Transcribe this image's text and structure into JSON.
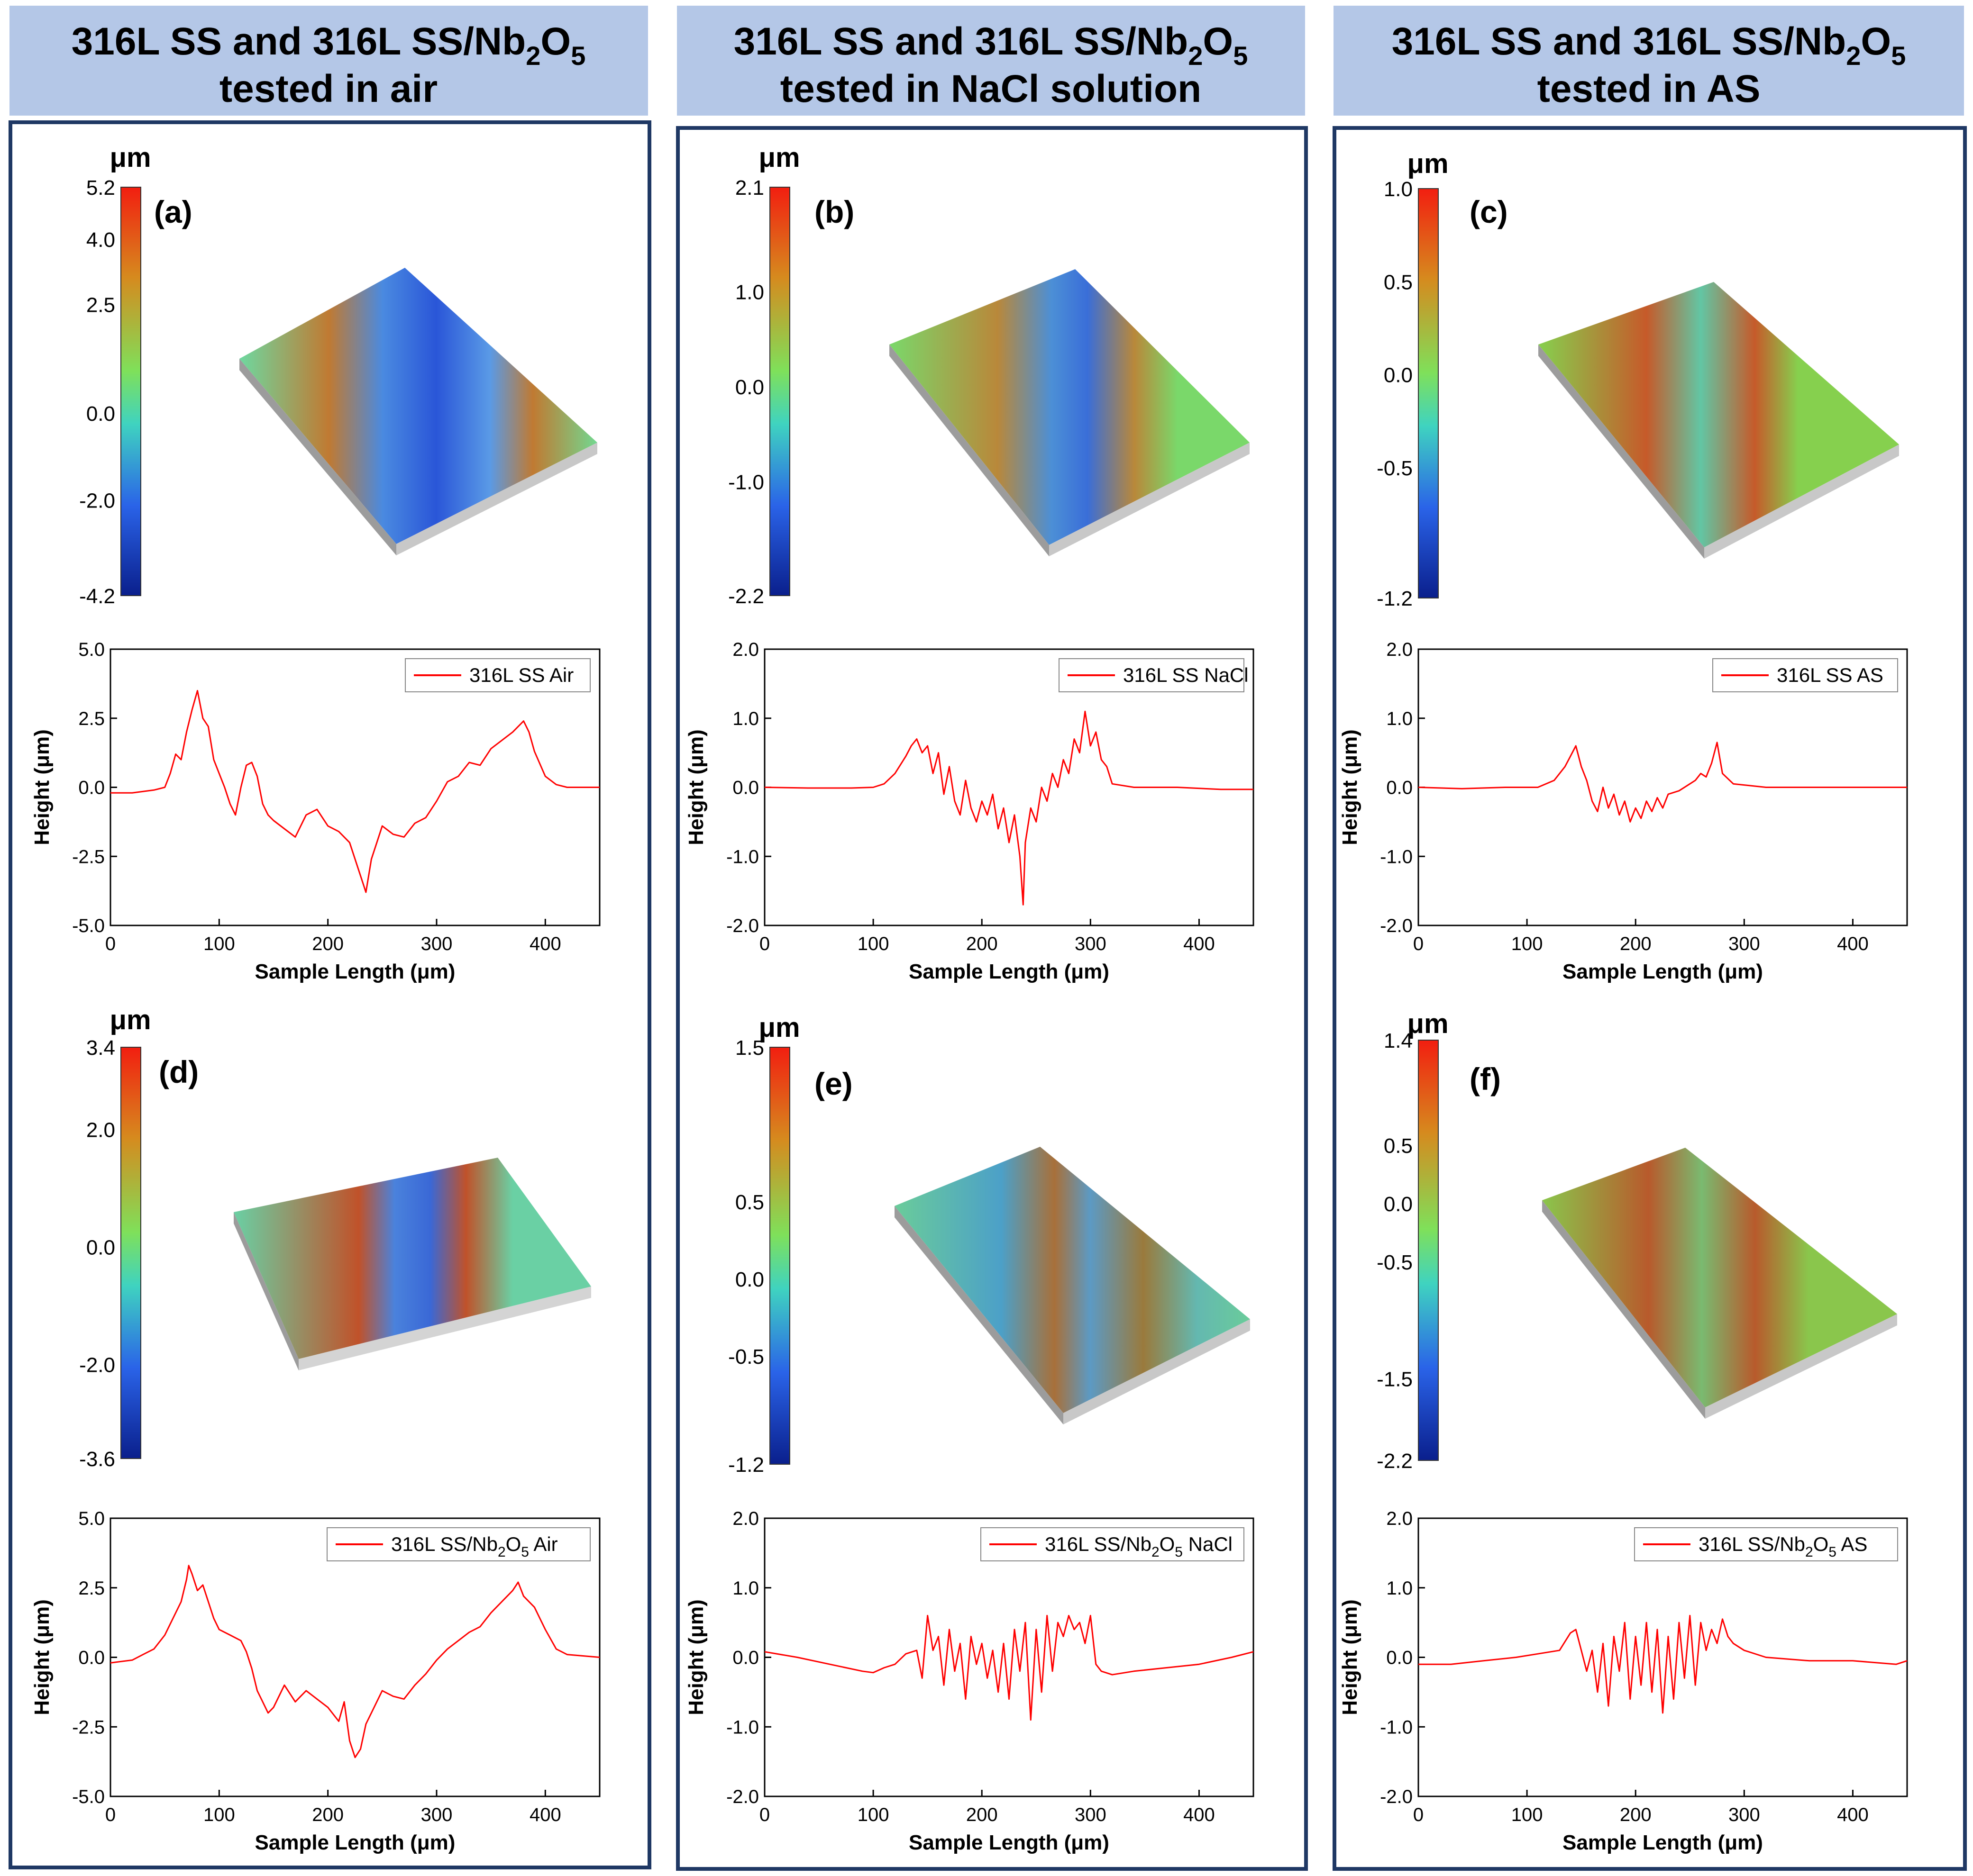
{
  "columns": [
    {
      "title_line1": "316L SS and 316L SS/Nb",
      "sub": "2",
      "title_line1_tail": "O",
      "sub2": "5",
      "title_line2": "tested in air"
    },
    {
      "title_line1": "316L SS and 316L SS/Nb",
      "sub": "2",
      "title_line1_tail": "O",
      "sub2": "5",
      "title_line2": "tested in NaCl solution"
    },
    {
      "title_line1": "316L SS and 316L SS/Nb",
      "sub": "2",
      "title_line1_tail": "O",
      "sub2": "5",
      "title_line2": "tested in AS"
    }
  ],
  "colors": {
    "header_bg": "#b4c7e7",
    "frame": "#1f3864",
    "series": "#ff0000",
    "scale_stops": [
      "#0a1f8c",
      "#2a63e8",
      "#3fd3c0",
      "#7fe05a",
      "#d68a1e",
      "#f21e10"
    ]
  },
  "colorbar_unit": "μm",
  "chart_data": [
    {
      "panel": "(a)",
      "type": "surface_colorbar",
      "ticks": [
        "5.2",
        "4.0",
        "2.5",
        "0.0",
        "-2.0",
        "-4.2"
      ],
      "tick_values": [
        5.2,
        4.0,
        2.5,
        0.0,
        -2.0,
        -4.2
      ],
      "range": [
        -4.2,
        5.2
      ]
    },
    {
      "panel": "(b)",
      "type": "surface_colorbar",
      "ticks": [
        "2.1",
        "1.0",
        "0.0",
        "-1.0",
        "-2.2"
      ],
      "tick_values": [
        2.1,
        1.0,
        0.0,
        -1.0,
        -2.2
      ],
      "range": [
        -2.2,
        2.1
      ]
    },
    {
      "panel": "(c)",
      "type": "surface_colorbar",
      "ticks": [
        "1.0",
        "0.5",
        "0.0",
        "-0.5",
        "-1.2"
      ],
      "tick_values": [
        1.0,
        0.5,
        0.0,
        -0.5,
        -1.2
      ],
      "range": [
        -1.2,
        1.0
      ]
    },
    {
      "panel": "(d)",
      "type": "surface_colorbar",
      "ticks": [
        "3.4",
        "2.0",
        "0.0",
        "-2.0",
        "-3.6"
      ],
      "tick_values": [
        3.4,
        2.0,
        0.0,
        -2.0,
        -3.6
      ],
      "range": [
        -3.6,
        3.4
      ]
    },
    {
      "panel": "(e)",
      "type": "surface_colorbar",
      "ticks": [
        "1.5",
        "0.5",
        "0.0",
        "-0.5",
        "-1.2"
      ],
      "tick_values": [
        1.5,
        0.5,
        0.0,
        -0.5,
        -1.2
      ],
      "range": [
        -1.2,
        1.5
      ]
    },
    {
      "panel": "(f)",
      "type": "surface_colorbar",
      "ticks": [
        "1.4",
        "0.5",
        "0.0",
        "-0.5",
        "-1.5",
        "-2.2"
      ],
      "tick_values": [
        1.4,
        0.5,
        0.0,
        -0.5,
        -1.5,
        -2.2
      ],
      "range": [
        -2.2,
        1.4
      ]
    },
    {
      "type": "line",
      "legend": "316L SS Air",
      "xlabel": "Sample Length (μm)",
      "ylabel": "Height (μm)",
      "xlim": [
        0,
        450
      ],
      "ylim": [
        -5.0,
        5.0
      ],
      "xticks": [
        0,
        100,
        200,
        300,
        400
      ],
      "yticks": [
        "5.0",
        "2.5",
        "0.0",
        "-2.5",
        "-5.0"
      ],
      "ytick_values": [
        5.0,
        2.5,
        0.0,
        -2.5,
        -5.0
      ],
      "x": [
        0,
        20,
        40,
        50,
        55,
        60,
        65,
        70,
        75,
        80,
        85,
        90,
        95,
        100,
        105,
        110,
        115,
        120,
        125,
        130,
        135,
        140,
        145,
        150,
        160,
        170,
        180,
        190,
        200,
        210,
        220,
        230,
        235,
        240,
        245,
        250,
        260,
        270,
        280,
        290,
        300,
        310,
        320,
        330,
        340,
        350,
        360,
        370,
        380,
        385,
        390,
        400,
        410,
        420,
        450
      ],
      "y": [
        -0.2,
        -0.2,
        -0.1,
        0.0,
        0.5,
        1.2,
        1.0,
        2.0,
        2.8,
        3.5,
        2.5,
        2.2,
        1.0,
        0.5,
        0.0,
        -0.6,
        -1.0,
        0.0,
        0.8,
        0.9,
        0.4,
        -0.6,
        -1.0,
        -1.2,
        -1.5,
        -1.8,
        -1.0,
        -0.8,
        -1.4,
        -1.6,
        -2.0,
        -3.2,
        -3.8,
        -2.6,
        -2.0,
        -1.4,
        -1.7,
        -1.8,
        -1.3,
        -1.1,
        -0.5,
        0.2,
        0.4,
        0.9,
        0.8,
        1.4,
        1.7,
        2.0,
        2.4,
        2.0,
        1.3,
        0.4,
        0.1,
        0.0,
        0.0
      ]
    },
    {
      "type": "line",
      "legend": "316L SS NaCl",
      "xlabel": "Sample Length (μm)",
      "ylabel": "Height (μm)",
      "xlim": [
        0,
        450
      ],
      "ylim": [
        -2.0,
        2.0
      ],
      "xticks": [
        0,
        100,
        200,
        300,
        400
      ],
      "yticks": [
        "2.0",
        "1.0",
        "0.0",
        "-1.0",
        "-2.0"
      ],
      "ytick_values": [
        2.0,
        1.0,
        0.0,
        -1.0,
        -2.0
      ],
      "x": [
        0,
        40,
        80,
        100,
        110,
        120,
        130,
        135,
        140,
        145,
        150,
        155,
        160,
        165,
        170,
        175,
        180,
        185,
        190,
        195,
        200,
        205,
        210,
        215,
        220,
        225,
        230,
        235,
        238,
        240,
        245,
        250,
        255,
        260,
        265,
        270,
        275,
        280,
        285,
        290,
        295,
        300,
        305,
        310,
        315,
        320,
        340,
        380,
        420,
        450
      ],
      "y": [
        0.0,
        -0.01,
        -0.01,
        0.0,
        0.05,
        0.2,
        0.45,
        0.6,
        0.7,
        0.5,
        0.6,
        0.2,
        0.5,
        -0.1,
        0.3,
        -0.2,
        -0.4,
        0.1,
        -0.3,
        -0.5,
        -0.2,
        -0.4,
        -0.1,
        -0.6,
        -0.3,
        -0.8,
        -0.4,
        -1.0,
        -1.7,
        -0.8,
        -0.3,
        -0.5,
        0.0,
        -0.2,
        0.2,
        0.0,
        0.4,
        0.2,
        0.7,
        0.5,
        1.1,
        0.6,
        0.8,
        0.4,
        0.3,
        0.05,
        0.0,
        0.0,
        -0.03,
        -0.03
      ]
    },
    {
      "type": "line",
      "legend": "316L SS AS",
      "xlabel": "Sample Length (μm)",
      "ylabel": "Height (μm)",
      "xlim": [
        0,
        450
      ],
      "ylim": [
        -2.0,
        2.0
      ],
      "xticks": [
        0,
        100,
        200,
        300,
        400
      ],
      "yticks": [
        "2.0",
        "1.0",
        "0.0",
        "-1.0",
        "-2.0"
      ],
      "ytick_values": [
        2.0,
        1.0,
        0.0,
        -1.0,
        -2.0
      ],
      "x": [
        0,
        40,
        80,
        110,
        125,
        135,
        140,
        145,
        150,
        155,
        160,
        165,
        170,
        175,
        180,
        185,
        190,
        195,
        200,
        205,
        210,
        215,
        220,
        225,
        230,
        240,
        250,
        255,
        260,
        265,
        270,
        275,
        280,
        290,
        320,
        360,
        400,
        450
      ],
      "y": [
        0.0,
        -0.02,
        0.0,
        0.0,
        0.1,
        0.3,
        0.45,
        0.6,
        0.3,
        0.1,
        -0.2,
        -0.35,
        0.0,
        -0.3,
        -0.1,
        -0.4,
        -0.2,
        -0.5,
        -0.3,
        -0.45,
        -0.2,
        -0.35,
        -0.15,
        -0.3,
        -0.1,
        -0.05,
        0.05,
        0.1,
        0.2,
        0.15,
        0.35,
        0.65,
        0.2,
        0.05,
        0.0,
        0.0,
        0.0,
        0.0
      ]
    },
    {
      "type": "line",
      "legend": "316L SS/Nb",
      "legend_sub": "2",
      "legend_mid": "O",
      "legend_sub2": "5",
      "legend_tail": " Air",
      "xlabel": "Sample Length (μm)",
      "ylabel": "Height (μm)",
      "xlim": [
        0,
        450
      ],
      "ylim": [
        -5.0,
        5.0
      ],
      "xticks": [
        0,
        100,
        200,
        300,
        400
      ],
      "yticks": [
        "5.0",
        "2.5",
        "0.0",
        "-2.5",
        "-5.0"
      ],
      "ytick_values": [
        5.0,
        2.5,
        0.0,
        -2.5,
        -5.0
      ],
      "x": [
        0,
        20,
        30,
        40,
        50,
        55,
        60,
        65,
        70,
        72,
        75,
        80,
        85,
        90,
        95,
        100,
        110,
        120,
        125,
        130,
        135,
        140,
        145,
        150,
        160,
        170,
        180,
        190,
        200,
        210,
        215,
        220,
        225,
        230,
        235,
        240,
        250,
        260,
        270,
        280,
        290,
        300,
        310,
        320,
        330,
        340,
        350,
        360,
        370,
        375,
        380,
        390,
        400,
        410,
        420,
        450
      ],
      "y": [
        -0.2,
        -0.1,
        0.1,
        0.3,
        0.8,
        1.2,
        1.6,
        2.0,
        2.8,
        3.3,
        3.0,
        2.4,
        2.6,
        2.0,
        1.4,
        1.0,
        0.8,
        0.6,
        0.2,
        -0.4,
        -1.2,
        -1.6,
        -2.0,
        -1.8,
        -1.0,
        -1.6,
        -1.2,
        -1.5,
        -1.8,
        -2.3,
        -1.6,
        -3.0,
        -3.6,
        -3.3,
        -2.4,
        -2.0,
        -1.2,
        -1.4,
        -1.5,
        -1.0,
        -0.6,
        -0.1,
        0.3,
        0.6,
        0.9,
        1.1,
        1.6,
        2.0,
        2.4,
        2.7,
        2.2,
        1.8,
        1.0,
        0.3,
        0.1,
        0.0
      ]
    },
    {
      "type": "line",
      "legend": "316L SS/Nb",
      "legend_sub": "2",
      "legend_mid": "O",
      "legend_sub2": "5",
      "legend_tail": " NaCl",
      "xlabel": "Sample Length (μm)",
      "ylabel": "Height (μm)",
      "xlim": [
        0,
        450
      ],
      "ylim": [
        -2.0,
        2.0
      ],
      "xticks": [
        0,
        100,
        200,
        300,
        400
      ],
      "yticks": [
        "2.0",
        "1.0",
        "0.0",
        "-1.0",
        "-2.0"
      ],
      "ytick_values": [
        2.0,
        1.0,
        0.0,
        -1.0,
        -2.0
      ],
      "x": [
        0,
        30,
        60,
        90,
        100,
        110,
        120,
        130,
        140,
        145,
        150,
        155,
        160,
        165,
        170,
        175,
        180,
        185,
        190,
        195,
        200,
        205,
        210,
        215,
        220,
        225,
        230,
        235,
        240,
        245,
        250,
        255,
        260,
        265,
        270,
        275,
        280,
        285,
        290,
        295,
        300,
        305,
        310,
        320,
        340,
        370,
        400,
        430,
        450
      ],
      "y": [
        0.08,
        0.0,
        -0.1,
        -0.2,
        -0.22,
        -0.15,
        -0.1,
        0.05,
        0.1,
        -0.3,
        0.6,
        0.1,
        0.3,
        -0.4,
        0.4,
        -0.2,
        0.2,
        -0.6,
        0.3,
        -0.1,
        0.2,
        -0.3,
        0.1,
        -0.5,
        0.2,
        -0.6,
        0.4,
        -0.2,
        0.5,
        -0.9,
        0.4,
        -0.5,
        0.6,
        -0.2,
        0.5,
        0.3,
        0.6,
        0.4,
        0.5,
        0.2,
        0.6,
        -0.1,
        -0.2,
        -0.25,
        -0.2,
        -0.15,
        -0.1,
        0.0,
        0.08
      ]
    },
    {
      "type": "line",
      "legend": "316L SS/Nb",
      "legend_sub": "2",
      "legend_mid": "O",
      "legend_sub2": "5",
      "legend_tail": " AS",
      "xlabel": "Sample Length (μm)",
      "ylabel": "Height (μm)",
      "xlim": [
        0,
        450
      ],
      "ylim": [
        -2.0,
        2.0
      ],
      "xticks": [
        0,
        100,
        200,
        300,
        400
      ],
      "yticks": [
        "2.0",
        "1.0",
        "0.0",
        "-1.0",
        "-2.0"
      ],
      "ytick_values": [
        2.0,
        1.0,
        0.0,
        -1.0,
        -2.0
      ],
      "x": [
        0,
        30,
        60,
        90,
        110,
        130,
        140,
        145,
        150,
        155,
        160,
        165,
        170,
        175,
        180,
        185,
        190,
        195,
        200,
        205,
        210,
        215,
        220,
        225,
        230,
        235,
        240,
        245,
        250,
        255,
        260,
        265,
        270,
        275,
        280,
        285,
        290,
        300,
        320,
        360,
        400,
        440,
        450
      ],
      "y": [
        -0.1,
        -0.1,
        -0.05,
        0.0,
        0.05,
        0.1,
        0.35,
        0.4,
        0.1,
        -0.2,
        0.1,
        -0.5,
        0.2,
        -0.7,
        0.3,
        -0.2,
        0.5,
        -0.6,
        0.3,
        -0.4,
        0.5,
        -0.5,
        0.4,
        -0.8,
        0.3,
        -0.6,
        0.5,
        -0.3,
        0.6,
        -0.4,
        0.5,
        0.1,
        0.4,
        0.2,
        0.55,
        0.3,
        0.2,
        0.1,
        0.0,
        -0.05,
        -0.05,
        -0.1,
        -0.05
      ]
    }
  ]
}
